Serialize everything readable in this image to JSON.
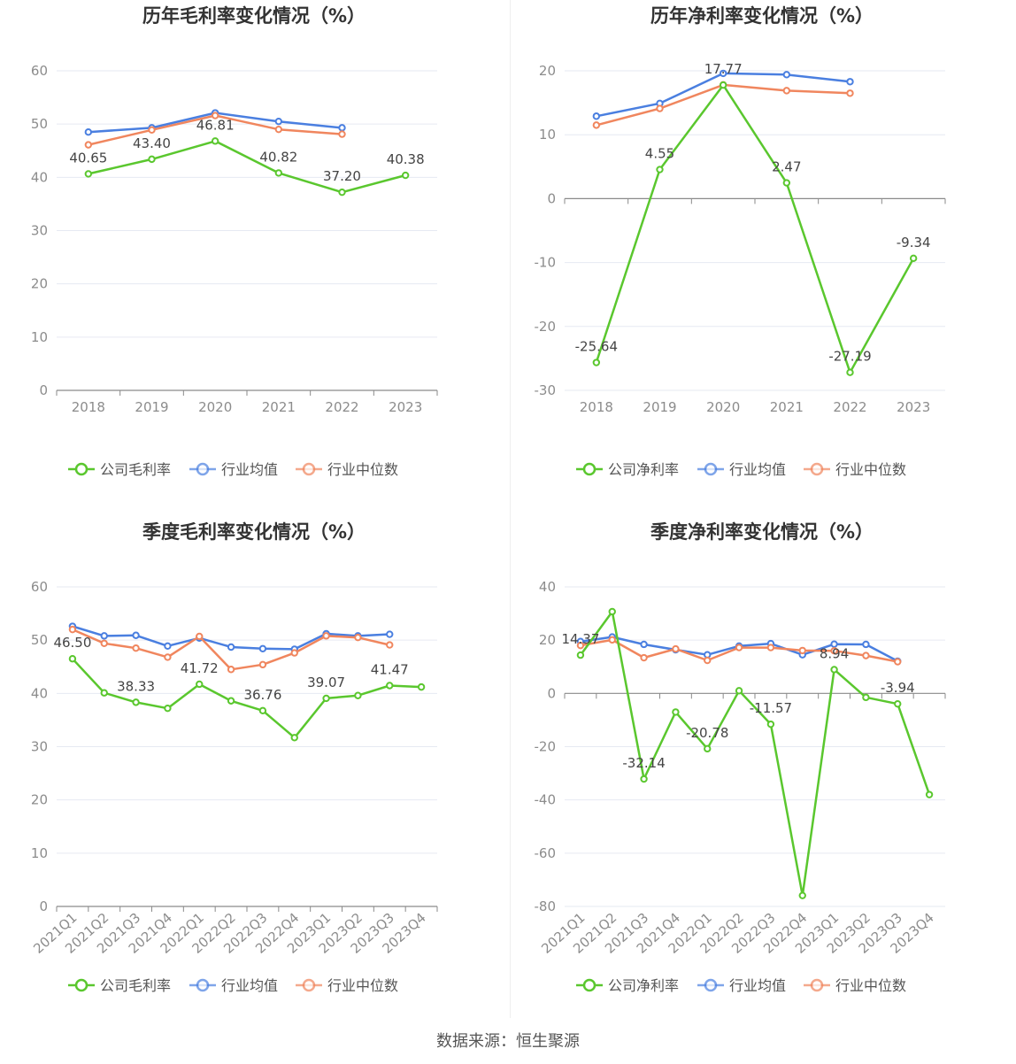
{
  "source": "数据来源：恒生聚源",
  "colors": {
    "company": "#5ac72e",
    "industry_avg": "#4a7fe0",
    "industry_median": "#f0865e"
  },
  "chart_data": [
    {
      "type": "line",
      "title": "历年毛利率变化情况（%）",
      "categories": [
        "2018",
        "2019",
        "2020",
        "2021",
        "2022",
        "2023"
      ],
      "ylim": [
        0,
        60
      ],
      "yticks": [
        0,
        10,
        20,
        30,
        40,
        50,
        60
      ],
      "grid": true,
      "legend": "bottom",
      "series": [
        {
          "name": "公司毛利率",
          "key": "company",
          "values": [
            40.65,
            43.4,
            46.81,
            40.82,
            37.2,
            40.38
          ],
          "labels": [
            "40.65",
            "43.40",
            "46.81",
            "40.82",
            "37.20",
            "40.38"
          ]
        },
        {
          "name": "行业均值",
          "key": "industry_avg",
          "values": [
            48.5,
            49.3,
            52.1,
            50.5,
            49.3,
            null
          ]
        },
        {
          "name": "行业中位数",
          "key": "industry_median",
          "values": [
            46.1,
            48.9,
            51.6,
            49.0,
            48.1,
            null
          ]
        }
      ]
    },
    {
      "type": "line",
      "title": "历年净利率变化情况（%）",
      "categories": [
        "2018",
        "2019",
        "2020",
        "2021",
        "2022",
        "2023"
      ],
      "ylim": [
        -30,
        20
      ],
      "yticks": [
        -30,
        -20,
        -10,
        0,
        10,
        20
      ],
      "grid": true,
      "legend": "bottom",
      "series": [
        {
          "name": "公司净利率",
          "key": "company",
          "values": [
            -25.64,
            4.55,
            17.77,
            2.47,
            -27.19,
            -9.34
          ],
          "labels": [
            "-25.64",
            "4.55",
            "17.77",
            "2.47",
            "-27.19",
            "-9.34"
          ]
        },
        {
          "name": "行业均值",
          "key": "industry_avg",
          "values": [
            12.9,
            14.9,
            19.6,
            19.4,
            18.3,
            null
          ]
        },
        {
          "name": "行业中位数",
          "key": "industry_median",
          "values": [
            11.5,
            14.1,
            17.8,
            16.9,
            16.5,
            null
          ]
        }
      ]
    },
    {
      "type": "line",
      "title": "季度毛利率变化情况（%）",
      "categories": [
        "2021Q1",
        "2021Q2",
        "2021Q3",
        "2021Q4",
        "2022Q1",
        "2022Q2",
        "2022Q3",
        "2022Q4",
        "2023Q1",
        "2023Q2",
        "2023Q3",
        "2023Q4"
      ],
      "ylim": [
        0,
        60
      ],
      "yticks": [
        0,
        10,
        20,
        30,
        40,
        50,
        60
      ],
      "grid": true,
      "legend": "bottom",
      "series": [
        {
          "name": "公司毛利率",
          "key": "company",
          "values": [
            46.5,
            40.1,
            38.33,
            37.2,
            41.72,
            38.6,
            36.76,
            31.7,
            39.07,
            39.6,
            41.47,
            41.2
          ],
          "labels": [
            "46.50",
            "",
            "38.33",
            "",
            "41.72",
            "",
            "36.76",
            "",
            "39.07",
            "",
            "41.47",
            ""
          ]
        },
        {
          "name": "行业均值",
          "key": "industry_avg",
          "values": [
            52.6,
            50.8,
            50.9,
            48.9,
            50.4,
            48.7,
            48.4,
            48.3,
            51.2,
            50.8,
            51.1,
            null
          ]
        },
        {
          "name": "行业中位数",
          "key": "industry_median",
          "values": [
            52.0,
            49.4,
            48.5,
            46.8,
            50.7,
            44.5,
            45.4,
            47.6,
            50.8,
            50.5,
            49.1,
            null
          ]
        }
      ]
    },
    {
      "type": "line",
      "title": "季度净利率变化情况（%）",
      "categories": [
        "2021Q1",
        "2021Q2",
        "2021Q3",
        "2021Q4",
        "2022Q1",
        "2022Q2",
        "2022Q3",
        "2022Q4",
        "2023Q1",
        "2023Q2",
        "2023Q3",
        "2023Q4"
      ],
      "ylim": [
        -80,
        40
      ],
      "yticks": [
        -80,
        -60,
        -40,
        -20,
        0,
        20,
        40
      ],
      "grid": true,
      "legend": "bottom",
      "series": [
        {
          "name": "公司净利率",
          "key": "company",
          "values": [
            14.37,
            30.7,
            -32.14,
            -7.0,
            -20.78,
            1.0,
            -11.57,
            -75.9,
            8.94,
            -1.5,
            -3.94,
            -38.0
          ],
          "labels": [
            "14.37",
            "",
            "-32.14",
            "",
            "-20.78",
            "",
            "-11.57",
            "",
            "8.94",
            "",
            "-3.94",
            ""
          ]
        },
        {
          "name": "行业均值",
          "key": "industry_avg",
          "values": [
            19.5,
            21.2,
            18.4,
            16.4,
            14.5,
            17.8,
            18.7,
            14.5,
            18.5,
            18.4,
            12.1,
            null
          ]
        },
        {
          "name": "行业中位数",
          "key": "industry_median",
          "values": [
            18.0,
            20.1,
            13.4,
            16.7,
            12.4,
            17.2,
            17.2,
            16.1,
            16.0,
            14.2,
            11.9,
            null
          ]
        }
      ]
    }
  ]
}
